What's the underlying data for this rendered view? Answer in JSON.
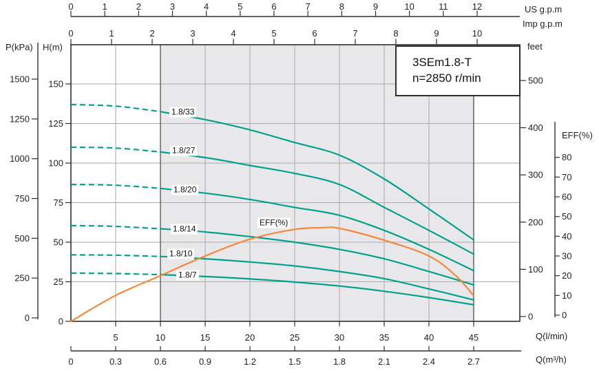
{
  "title": {
    "model": "3SEm1.8-T",
    "speed": "n=2850 r/min"
  },
  "top_axes": {
    "us_gpm": {
      "name": "US  g.p.m",
      "ticks": [
        "0",
        "1",
        "2",
        "3",
        "4",
        "5",
        "6",
        "7",
        "8",
        "9",
        "10",
        "11",
        "12"
      ]
    },
    "imp_gpm": {
      "name": "Imp  g.p.m",
      "ticks": [
        "0",
        "1",
        "2",
        "3",
        "4",
        "5",
        "6",
        "7",
        "8",
        "9",
        "10"
      ]
    }
  },
  "left_axes": {
    "p_kpa": {
      "name": "P(kPa)",
      "ticks": [
        "0",
        "250",
        "500",
        "750",
        "1000",
        "1250",
        "1500"
      ]
    },
    "h_m": {
      "name": "H(m)",
      "ticks": [
        "0",
        "25",
        "50",
        "75",
        "100",
        "125",
        "150"
      ]
    }
  },
  "right_axes": {
    "feet": {
      "name": "feet",
      "ticks": [
        "0",
        "100",
        "200",
        "300",
        "400",
        "500"
      ]
    },
    "eff": {
      "name": "EFF(%)",
      "ticks": [
        "0",
        "10",
        "20",
        "30",
        "40",
        "50",
        "60",
        "70",
        "80"
      ]
    }
  },
  "bottom_axes": {
    "q_lmin": {
      "name": "Q(l/min)",
      "ticks": [
        "5",
        "10",
        "15",
        "20",
        "25",
        "30",
        "35",
        "40",
        "45"
      ]
    },
    "q_m3h": {
      "name": "Q(m³/h)",
      "ticks": [
        "0",
        "0.3",
        "0.6",
        "0.9",
        "1.2",
        "1.5",
        "1.8",
        "2.1",
        "2.4",
        "2.7"
      ]
    }
  },
  "curve_labels": [
    "1.8/33",
    "1.8/27",
    "1.8/20",
    "1.8/14",
    "1.8/10",
    "1.8/7"
  ],
  "eff_label": "EFF(%)",
  "colors": {
    "curve_teal": "#00a18c",
    "eff_orange": "#f5873a",
    "shaded_region": "#e8e8ea",
    "grid": "#a9a9a9",
    "region_edge": "#4e4e4e",
    "axis": "#2e2e2e"
  },
  "chart_data": {
    "type": "line",
    "title": "3SEm1.8-T pump performance curves, n=2850 r/min",
    "xlabel": "Q(l/min)",
    "ylabel": "H(m)",
    "x": [
      0,
      5,
      10,
      15,
      20,
      25,
      30,
      35,
      40,
      45
    ],
    "series": [
      {
        "name": "1.8/33",
        "values": [
          137,
          136,
          132.5,
          127.5,
          121,
          113,
          105,
          90,
          71,
          51.5
        ]
      },
      {
        "name": "1.8/27",
        "values": [
          110,
          109.5,
          107,
          103.5,
          98.5,
          93.5,
          86.5,
          72,
          57.5,
          42.5
        ]
      },
      {
        "name": "1.8/20",
        "values": [
          86.5,
          86,
          84,
          81,
          77,
          72,
          67,
          57.5,
          45.5,
          32
        ]
      },
      {
        "name": "1.8/14",
        "values": [
          60.5,
          60,
          58.5,
          56.5,
          53.5,
          50,
          45.5,
          39.5,
          31.5,
          23
        ]
      },
      {
        "name": "1.8/10",
        "values": [
          42,
          41.8,
          41,
          39.5,
          37.5,
          35,
          31.5,
          27,
          20.5,
          13.5
        ]
      },
      {
        "name": "1.8/7",
        "values": [
          30.5,
          30.2,
          29.5,
          28.3,
          26.8,
          24.8,
          22.3,
          19,
          15,
          10.5
        ]
      }
    ],
    "eff_series": {
      "name": "EFF(%)",
      "axis": "EFF(%) right axis",
      "x": [
        0,
        5,
        10,
        15,
        20,
        25,
        28,
        30,
        35,
        40,
        43,
        45
      ],
      "values": [
        0,
        10,
        20,
        30,
        38.5,
        43.5,
        44.3,
        44,
        38,
        30,
        20,
        9.8
      ]
    },
    "dashed_q_range": [
      0,
      10
    ],
    "shaded_q_range": [
      10,
      45
    ],
    "q_axis_range": [
      0,
      50
    ],
    "h_axis_range": [
      0,
      175
    ],
    "secondary_axes": {
      "p_kpa_range": [
        0,
        1500
      ],
      "feet_range": [
        0,
        500
      ],
      "eff_range": [
        0,
        80
      ],
      "us_gpm_range": [
        0,
        12
      ],
      "imp_gpm_range": [
        0,
        10
      ],
      "q_m3h_range": [
        0,
        2.7
      ]
    },
    "grid": true,
    "legend_position": "labels on curves"
  }
}
